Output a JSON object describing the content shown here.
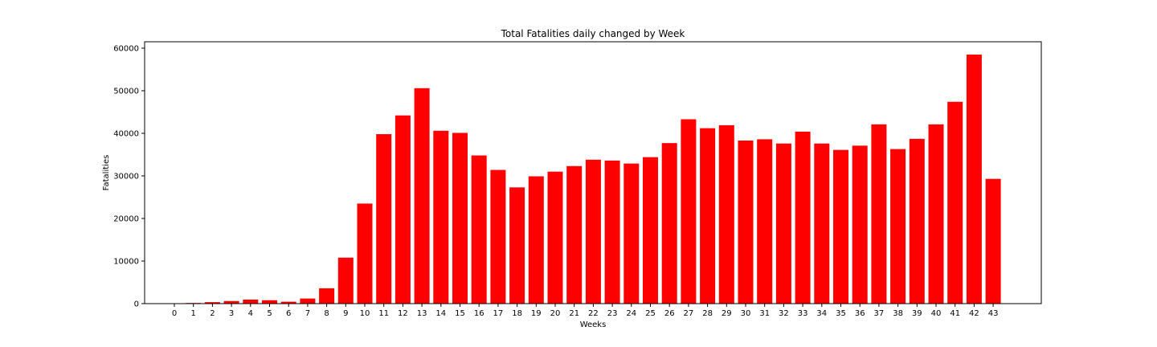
{
  "chart_data": {
    "type": "bar",
    "title": "Total Fatalities daily changed by Week",
    "xlabel": "Weeks",
    "ylabel": "Fatalities",
    "categories": [
      "0",
      "1",
      "2",
      "3",
      "4",
      "5",
      "6",
      "7",
      "8",
      "9",
      "10",
      "11",
      "12",
      "13",
      "14",
      "15",
      "16",
      "17",
      "18",
      "19",
      "20",
      "21",
      "22",
      "23",
      "24",
      "25",
      "26",
      "27",
      "28",
      "29",
      "30",
      "31",
      "32",
      "33",
      "34",
      "35",
      "36",
      "37",
      "38",
      "39",
      "40",
      "41",
      "42",
      "43"
    ],
    "values": [
      30,
      150,
      350,
      600,
      950,
      800,
      450,
      1200,
      3600,
      10800,
      23500,
      39800,
      44200,
      50600,
      40600,
      40100,
      34800,
      31400,
      27300,
      29900,
      31000,
      32300,
      33800,
      33600,
      32900,
      34400,
      37700,
      43300,
      41200,
      41900,
      38300,
      38600,
      37600,
      40400,
      37600,
      36100,
      37100,
      42100,
      36300,
      38700,
      42100,
      47400,
      58500,
      29300
    ],
    "yticks": [
      "0",
      "10000",
      "20000",
      "30000",
      "40000",
      "50000",
      "60000"
    ],
    "ylim": [
      0,
      61500
    ],
    "bar_color": "#ff0000",
    "grid": false,
    "legend": "none"
  }
}
